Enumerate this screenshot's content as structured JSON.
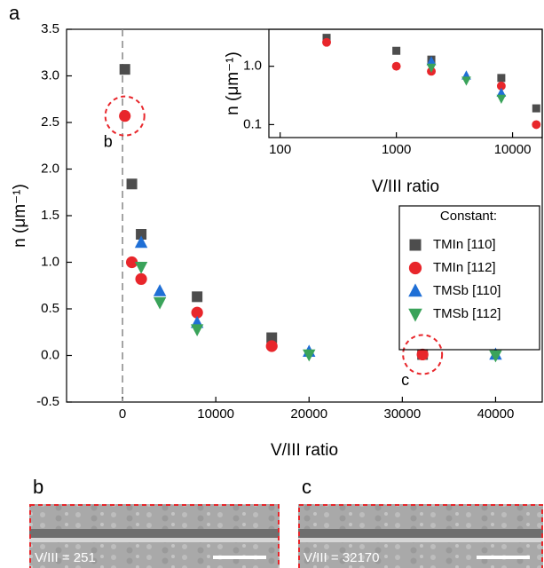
{
  "chart_data": [
    {
      "type": "scatter",
      "panel_label": "a",
      "x_label": "V/III ratio",
      "y_label": "n (μm⁻¹)",
      "xlim": [
        -6000,
        45000
      ],
      "xticks": [
        0,
        10000,
        20000,
        30000,
        40000
      ],
      "ylim": [
        -0.5,
        3.5
      ],
      "yticks": [
        -0.5,
        {
          "value": 0,
          "label": "0.0"
        },
        0.5,
        {
          "value": 1,
          "label": "1.0"
        },
        1.5,
        {
          "value": 2,
          "label": "2.0"
        },
        2.5,
        {
          "value": 3,
          "label": "3.0"
        },
        3.5
      ],
      "legend_title": "Constant:",
      "legend": "lower right",
      "callouts": [
        {
          "label": "b",
          "x": 251,
          "y": 2.57
        },
        {
          "label": "c",
          "x": 32170,
          "y": 0.01
        }
      ],
      "series": [
        {
          "name": "TMIn [110]",
          "color": "#4d4d4d",
          "marker": "square",
          "x": [
            251,
            1000,
            2000,
            8000,
            16000,
            32170
          ],
          "values": [
            3.07,
            1.84,
            1.3,
            0.63,
            0.19,
            0.01
          ]
        },
        {
          "name": "TMIn [112]",
          "color": "#e8262b",
          "marker": "circle",
          "x": [
            251,
            1000,
            2000,
            8000,
            16000,
            32170
          ],
          "values": [
            2.57,
            1.0,
            0.82,
            0.46,
            0.1,
            0.01
          ]
        },
        {
          "name": "TMSb [110]",
          "color": "#1f6fd6",
          "marker": "triangle-up",
          "x": [
            2000,
            4000,
            8000,
            20000,
            40000
          ],
          "values": [
            1.21,
            0.69,
            0.35,
            0.04,
            0.01
          ]
        },
        {
          "name": "TMSb [112]",
          "color": "#3aa35a",
          "marker": "triangle-down",
          "x": [
            2000,
            4000,
            8000,
            20000,
            40000
          ],
          "values": [
            0.95,
            0.57,
            0.28,
            0.01,
            0.0
          ]
        }
      ]
    },
    {
      "type": "scatter",
      "x_label": "V/III ratio",
      "y_label": "n (μm⁻¹)",
      "log_x": true,
      "log_y": true,
      "xlim": [
        80,
        18000
      ],
      "xticks": [
        100,
        1000,
        10000
      ],
      "ylim": [
        0.06,
        4.3
      ],
      "yticks": [
        0.1,
        {
          "value": 1,
          "label": "1.0"
        }
      ],
      "series": [
        {
          "color": "#4d4d4d",
          "marker": "square",
          "x": [
            251,
            1000,
            2000,
            8000,
            16000
          ],
          "values": [
            3.07,
            1.84,
            1.3,
            0.63,
            0.19
          ]
        },
        {
          "color": "#e8262b",
          "marker": "circle",
          "x": [
            251,
            1000,
            2000,
            8000,
            16000
          ],
          "values": [
            2.57,
            1.0,
            0.82,
            0.46,
            0.1
          ]
        },
        {
          "color": "#1f6fd6",
          "marker": "triangle-up",
          "x": [
            2000,
            4000,
            8000
          ],
          "values": [
            1.21,
            0.69,
            0.35
          ]
        },
        {
          "color": "#3aa35a",
          "marker": "triangle-down",
          "x": [
            2000,
            4000,
            8000
          ],
          "values": [
            0.95,
            0.57,
            0.28
          ]
        }
      ]
    }
  ],
  "images": [
    {
      "label": "b",
      "caption": "V/III = 251"
    },
    {
      "label": "c",
      "caption": "V/III = 32170"
    }
  ]
}
